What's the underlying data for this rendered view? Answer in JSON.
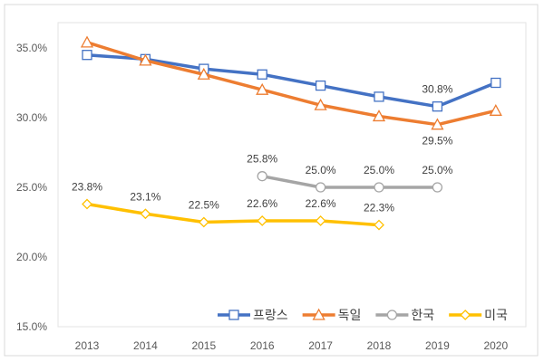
{
  "chart_data": {
    "type": "line",
    "categories": [
      "2013",
      "2014",
      "2015",
      "2016",
      "2017",
      "2018",
      "2019",
      "2020"
    ],
    "ylim": [
      15,
      35
    ],
    "yticks": [
      "15.0%",
      "20.0%",
      "25.0%",
      "30.0%",
      "35.0%"
    ],
    "ytick_values": [
      15,
      20,
      25,
      30,
      35
    ],
    "grid": false,
    "legend_position": "bottom-right",
    "series": [
      {
        "name": "프랑스",
        "color": "#4472C4",
        "marker": "square",
        "values": [
          34.5,
          34.2,
          33.5,
          33.1,
          32.3,
          31.5,
          30.8,
          32.5
        ],
        "labels": [
          null,
          null,
          null,
          null,
          null,
          null,
          "30.8%",
          null
        ],
        "label_pos": "above"
      },
      {
        "name": "독일",
        "color": "#ED7D31",
        "marker": "triangle",
        "values": [
          35.4,
          34.1,
          33.1,
          32.0,
          30.9,
          30.1,
          29.5,
          30.5
        ],
        "labels": [
          null,
          null,
          null,
          null,
          null,
          null,
          "29.5%",
          null
        ],
        "label_pos": "below"
      },
      {
        "name": "한국",
        "color": "#A5A5A5",
        "marker": "circle",
        "values": [
          null,
          null,
          null,
          25.8,
          25.0,
          25.0,
          25.0,
          null
        ],
        "labels": [
          null,
          null,
          null,
          "25.8%",
          "25.0%",
          "25.0%",
          "25.0%",
          null
        ],
        "label_pos": "above"
      },
      {
        "name": "미국",
        "color": "#FFC000",
        "marker": "diamond",
        "values": [
          23.8,
          23.1,
          22.5,
          22.6,
          22.6,
          22.3,
          null,
          null
        ],
        "labels": [
          "23.8%",
          "23.1%",
          "22.5%",
          "22.6%",
          "22.6%",
          "22.3%",
          null,
          null
        ],
        "label_pos": "above"
      }
    ]
  }
}
